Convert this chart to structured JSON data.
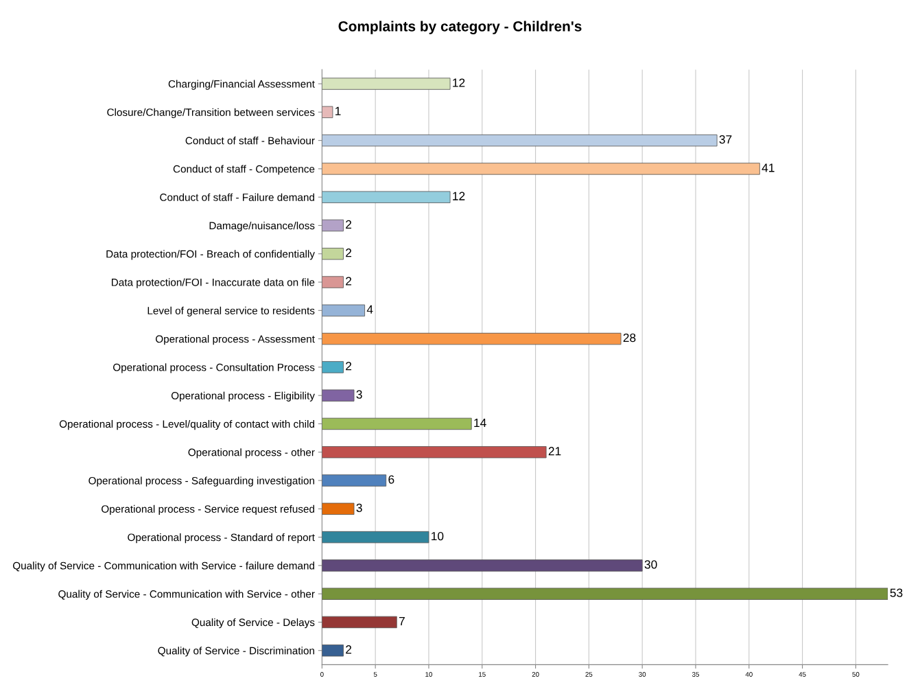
{
  "chart_data": {
    "type": "bar",
    "orientation": "horizontal",
    "title": "Complaints by category - Children's",
    "categories": [
      "Charging/Financial Assessment",
      "Closure/Change/Transition between services",
      "Conduct of staff - Behaviour",
      "Conduct of staff - Competence",
      "Conduct of staff - Failure demand",
      "Damage/nuisance/loss",
      "Data protection/FOI - Breach of confidentially",
      "Data protection/FOI - Inaccurate data on file",
      "Level of general service to residents",
      "Operational process - Assessment",
      "Operational process - Consultation Process",
      "Operational process - Eligibility",
      "Operational process - Level/quality of contact with child",
      "Operational process - other",
      "Operational process - Safeguarding investigation",
      "Operational process - Service request refused",
      "Operational process - Standard of report",
      "Quality of Service - Communication with Service - failure demand",
      "Quality of Service - Communication with Service - other",
      "Quality of Service - Delays",
      "Quality of Service - Discrimination"
    ],
    "values": [
      12,
      1,
      37,
      41,
      12,
      2,
      2,
      2,
      4,
      28,
      2,
      3,
      14,
      21,
      6,
      3,
      10,
      30,
      53,
      7,
      2
    ],
    "colors": [
      "#d7e4bd",
      "#e6b9b8",
      "#b9cde5",
      "#fac090",
      "#93cddd",
      "#b3a2c7",
      "#c3d69b",
      "#d99694",
      "#95b3d7",
      "#f79646",
      "#4bacc6",
      "#8064a2",
      "#9bbb59",
      "#c0504d",
      "#4f81bd",
      "#e46c0a",
      "#31859c",
      "#5f497a",
      "#77933c",
      "#953735",
      "#376092"
    ],
    "xlim": [
      0,
      53
    ],
    "xticks": [
      0,
      5,
      10,
      15,
      20,
      25,
      30,
      35,
      40,
      45,
      50
    ],
    "grid": "x",
    "data_labels": true
  }
}
